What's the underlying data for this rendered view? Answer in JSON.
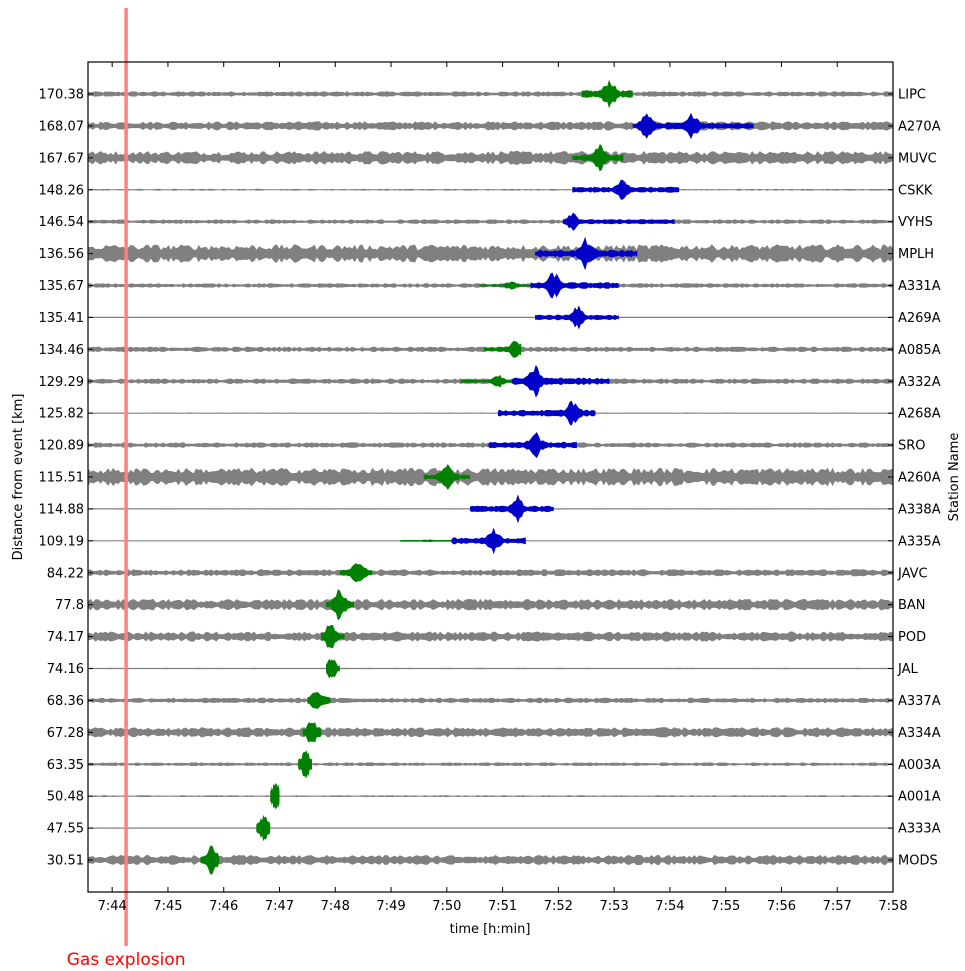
{
  "chart_data": {
    "type": "line",
    "xlabel": "time [h:min]",
    "ylabel": "Distance from event [km]",
    "y2label": "Station Name",
    "x_ticks": [
      "7:44",
      "7:45",
      "7:46",
      "7:47",
      "7:48",
      "7:49",
      "7:50",
      "7:51",
      "7:52",
      "7:53",
      "7:54",
      "7:55",
      "7:56",
      "7:57",
      "7:58"
    ],
    "xlim": [
      "7:43:34",
      "7:58:00"
    ],
    "grid": false,
    "annotation": {
      "label": "Gas explosion",
      "time": "7:44:15",
      "color": "#ff8080",
      "label_color": "#ff0000"
    },
    "colors": {
      "background_trace": "#808080",
      "first_arrival": "#008000",
      "second_arrival": "#0000c8"
    },
    "stations": [
      {
        "name": "LIPC",
        "distance": "170.38",
        "noise": 0.12,
        "segments": [
          {
            "color": "green",
            "start": "7:52:25",
            "end": "7:53:20",
            "peak": "7:52:55",
            "amp": 0.9
          }
        ]
      },
      {
        "name": "A270A",
        "distance": "168.07",
        "noise": 0.2,
        "segments": [
          {
            "color": "blue",
            "start": "7:53:20",
            "end": "7:55:30",
            "peak": "7:53:35",
            "amp": 0.8,
            "peak2": "7:54:25"
          }
        ]
      },
      {
        "name": "MUVC",
        "distance": "167.67",
        "noise": 0.3,
        "segments": [
          {
            "color": "green",
            "start": "7:52:15",
            "end": "7:53:10",
            "peak": "7:52:45",
            "amp": 0.8
          }
        ]
      },
      {
        "name": "CSKK",
        "distance": "148.26",
        "noise": 0.04,
        "segments": [
          {
            "color": "blue",
            "start": "7:52:15",
            "end": "7:54:10",
            "peak": "7:53:10",
            "amp": 0.7
          }
        ]
      },
      {
        "name": "VYHS",
        "distance": "146.54",
        "noise": 0.1,
        "segments": [
          {
            "color": "blue",
            "start": "7:52:05",
            "end": "7:54:05",
            "peak": "7:52:15",
            "amp": 0.6
          }
        ]
      },
      {
        "name": "MPLH",
        "distance": "136.56",
        "noise": 0.4,
        "segments": [
          {
            "color": "blue",
            "start": "7:51:35",
            "end": "7:53:25",
            "peak": "7:52:30",
            "amp": 0.9
          }
        ]
      },
      {
        "name": "A331A",
        "distance": "135.67",
        "noise": 0.1,
        "segments": [
          {
            "color": "green",
            "start": "7:50:35",
            "end": "7:51:30",
            "peak": "7:51:10",
            "amp": 0.3
          },
          {
            "color": "blue",
            "start": "7:51:30",
            "end": "7:53:05",
            "peak": "7:51:55",
            "amp": 0.8
          }
        ]
      },
      {
        "name": "A269A",
        "distance": "135.41",
        "noise": 0.02,
        "segments": [
          {
            "color": "blue",
            "start": "7:51:35",
            "end": "7:53:05",
            "peak": "7:52:20",
            "amp": 0.7
          }
        ]
      },
      {
        "name": "A085A",
        "distance": "134.46",
        "noise": 0.12,
        "segments": [
          {
            "color": "green",
            "start": "7:50:40",
            "end": "7:51:20",
            "peak": "7:51:15",
            "amp": 0.6
          }
        ]
      },
      {
        "name": "A332A",
        "distance": "129.29",
        "noise": 0.12,
        "segments": [
          {
            "color": "green",
            "start": "7:50:15",
            "end": "7:51:10",
            "peak": "7:50:55",
            "amp": 0.4
          },
          {
            "color": "blue",
            "start": "7:51:10",
            "end": "7:52:55",
            "peak": "7:51:35",
            "amp": 0.9
          }
        ]
      },
      {
        "name": "A268A",
        "distance": "125.82",
        "noise": 0.03,
        "segments": [
          {
            "color": "blue",
            "start": "7:50:55",
            "end": "7:52:40",
            "peak": "7:52:15",
            "amp": 0.8
          }
        ]
      },
      {
        "name": "SRO",
        "distance": "120.89",
        "noise": 0.12,
        "segments": [
          {
            "color": "blue",
            "start": "7:50:45",
            "end": "7:52:20",
            "peak": "7:51:35",
            "amp": 0.8
          }
        ]
      },
      {
        "name": "A260A",
        "distance": "115.51",
        "noise": 0.4,
        "segments": [
          {
            "color": "green",
            "start": "7:49:35",
            "end": "7:50:25",
            "peak": "7:50:00",
            "amp": 0.7
          }
        ]
      },
      {
        "name": "A338A",
        "distance": "114.88",
        "noise": 0.03,
        "segments": [
          {
            "color": "blue",
            "start": "7:50:25",
            "end": "7:51:55",
            "peak": "7:51:15",
            "amp": 0.8
          }
        ]
      },
      {
        "name": "A335A",
        "distance": "109.19",
        "noise": 0.02,
        "segments": [
          {
            "color": "green",
            "start": "7:49:10",
            "end": "7:50:05",
            "peak": "7:49:40",
            "amp": 0.1
          },
          {
            "color": "blue",
            "start": "7:50:05",
            "end": "7:51:25",
            "peak": "7:50:50",
            "amp": 0.8
          }
        ]
      },
      {
        "name": "JAVC",
        "distance": "84.22",
        "noise": 0.15,
        "segments": [
          {
            "color": "green",
            "start": "7:48:05",
            "end": "7:48:40",
            "peak": "7:48:25",
            "amp": 0.8
          }
        ]
      },
      {
        "name": "BAN",
        "distance": "77.8",
        "noise": 0.25,
        "segments": [
          {
            "color": "green",
            "start": "7:47:50",
            "end": "7:48:20",
            "peak": "7:48:05",
            "amp": 0.9
          }
        ]
      },
      {
        "name": "POD",
        "distance": "74.17",
        "noise": 0.22,
        "segments": [
          {
            "color": "green",
            "start": "7:47:45",
            "end": "7:48:10",
            "peak": "7:47:55",
            "amp": 0.8
          }
        ]
      },
      {
        "name": "JAL",
        "distance": "74.16",
        "noise": 0.03,
        "segments": [
          {
            "color": "green",
            "start": "7:47:50",
            "end": "7:48:05",
            "peak": "7:47:55",
            "amp": 0.7
          }
        ]
      },
      {
        "name": "A337A",
        "distance": "68.36",
        "noise": 0.12,
        "segments": [
          {
            "color": "green",
            "start": "7:47:30",
            "end": "7:47:55",
            "peak": "7:47:40",
            "amp": 0.8
          }
        ]
      },
      {
        "name": "A334A",
        "distance": "67.28",
        "noise": 0.22,
        "segments": [
          {
            "color": "green",
            "start": "7:47:25",
            "end": "7:47:45",
            "peak": "7:47:35",
            "amp": 0.8
          }
        ]
      },
      {
        "name": "A003A",
        "distance": "63.35",
        "noise": 0.08,
        "segments": [
          {
            "color": "green",
            "start": "7:47:20",
            "end": "7:47:35",
            "peak": "7:47:28",
            "amp": 0.8
          }
        ]
      },
      {
        "name": "A001A",
        "distance": "50.48",
        "noise": 0.04,
        "segments": [
          {
            "color": "green",
            "start": "7:46:50",
            "end": "7:47:00",
            "peak": "7:46:56",
            "amp": 0.8
          }
        ]
      },
      {
        "name": "A333A",
        "distance": "47.55",
        "noise": 0.02,
        "segments": [
          {
            "color": "green",
            "start": "7:46:35",
            "end": "7:46:50",
            "peak": "7:46:43",
            "amp": 0.8
          }
        ]
      },
      {
        "name": "MODS",
        "distance": "30.51",
        "noise": 0.22,
        "segments": [
          {
            "color": "green",
            "start": "7:45:35",
            "end": "7:45:55",
            "peak": "7:45:47",
            "amp": 0.9
          }
        ]
      }
    ]
  }
}
